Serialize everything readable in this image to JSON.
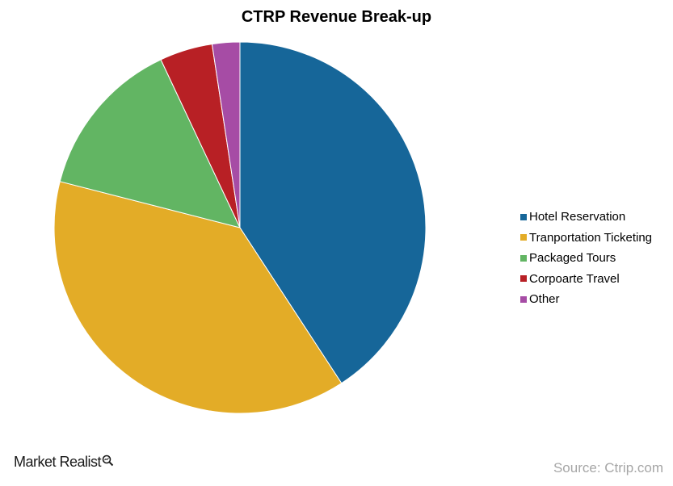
{
  "chart_data": {
    "type": "pie",
    "title": "CTRP Revenue Break-up",
    "categories": [
      "Hotel Reservation",
      "Tranportation Ticketing",
      "Packaged Tours",
      "Corpoarte Travel",
      "Other"
    ],
    "values": [
      40.8,
      38.2,
      14.0,
      4.6,
      2.4
    ],
    "colors": [
      "#166699",
      "#E3AC27",
      "#62B563",
      "#B82025",
      "#A64CA5"
    ],
    "legend_position": "right",
    "start_angle": "12 o'clock, clockwise"
  },
  "footer": {
    "brand": "Market Realist",
    "brand_icon": "magnifier-icon",
    "source": "Source: Ctrip.com"
  }
}
